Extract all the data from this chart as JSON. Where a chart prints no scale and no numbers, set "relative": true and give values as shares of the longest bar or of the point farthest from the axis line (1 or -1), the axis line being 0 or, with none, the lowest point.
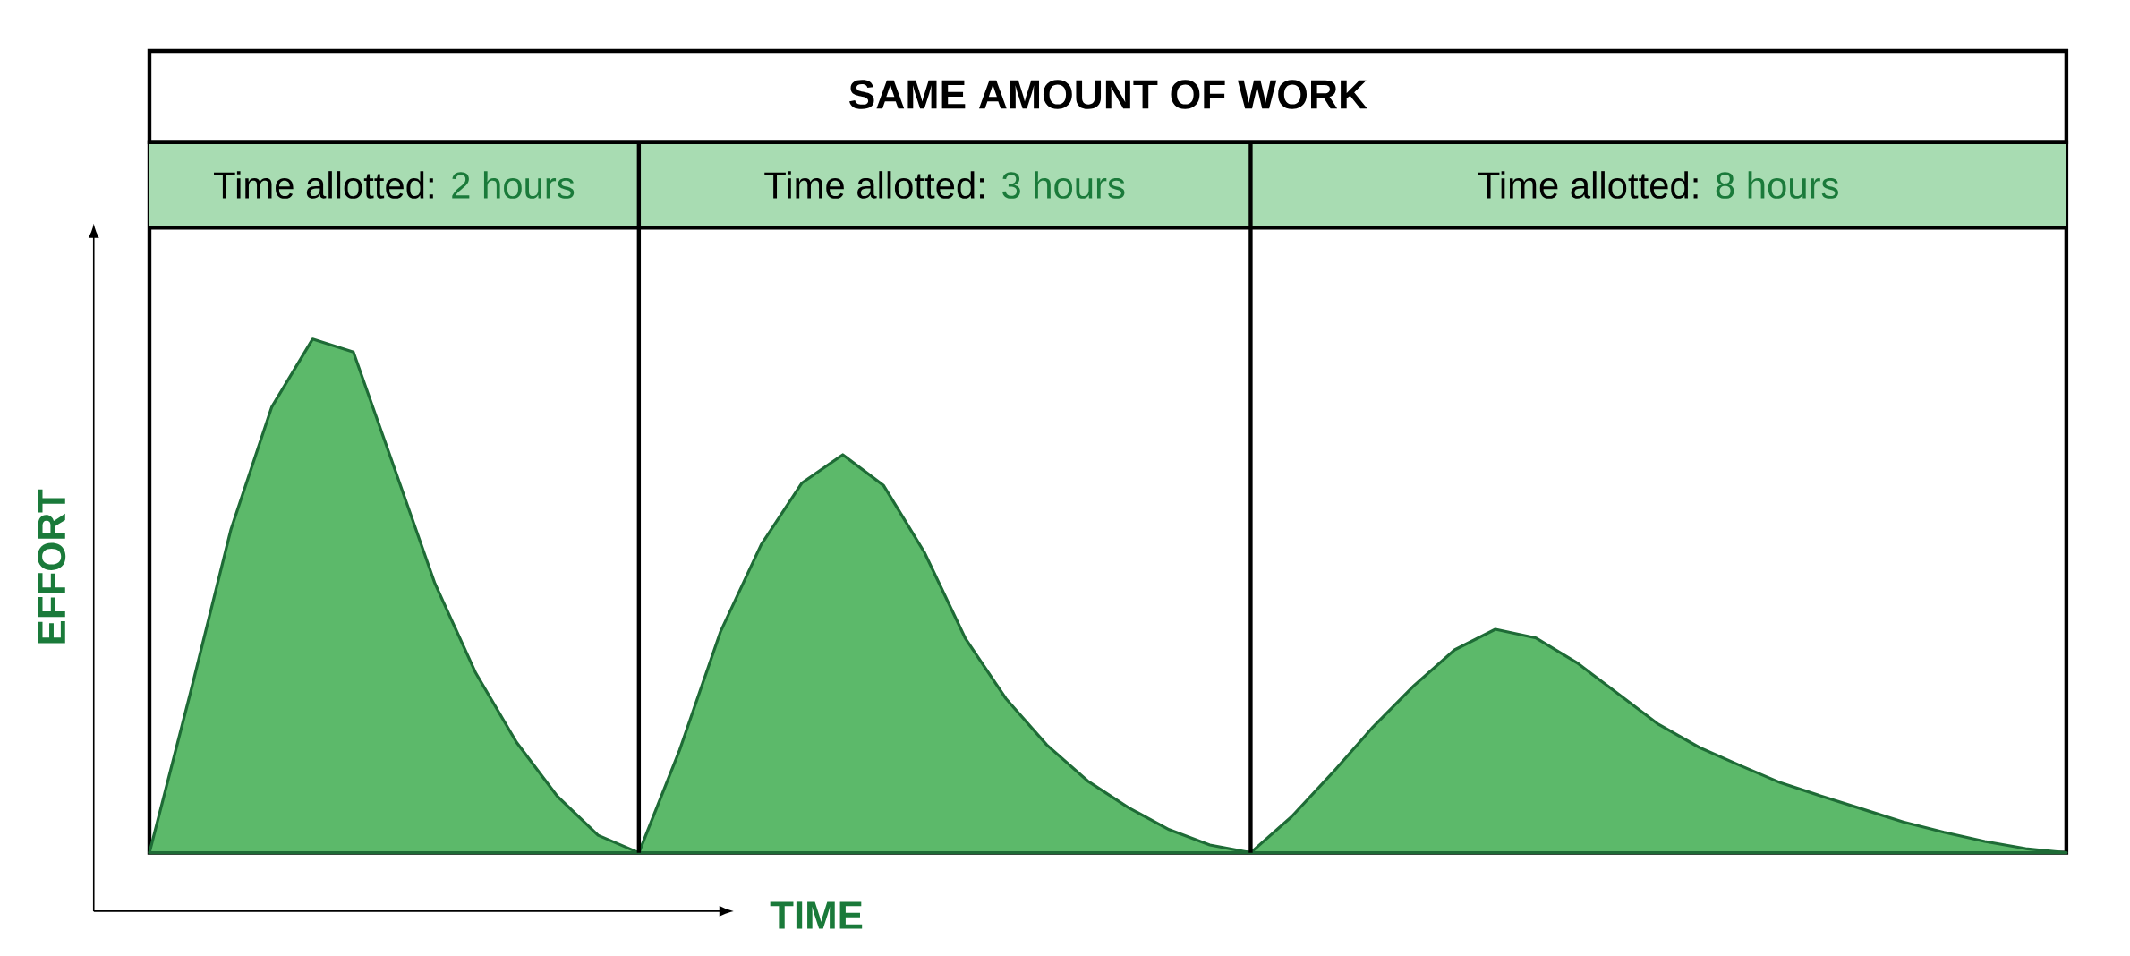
{
  "chart_data": {
    "type": "area",
    "relative": true,
    "tick_labels": false,
    "xlabel": "TIME",
    "ylabel": "EFFORT",
    "annotations": [
      "SAME AMOUNT OF WORK",
      "Time allotted:",
      "2 hours",
      "Time allotted:",
      "3 hours",
      "Time allotted:",
      "8 hours"
    ],
    "categories": [
      null,
      null,
      null,
      null,
      null,
      null,
      null,
      null,
      null,
      null,
      null,
      null,
      null,
      null,
      null,
      null,
      null,
      null,
      null,
      null,
      null,
      null,
      null,
      null,
      null,
      null,
      null,
      null,
      null,
      null,
      null,
      null,
      null,
      null,
      null,
      null,
      null,
      null,
      null,
      null,
      null,
      null,
      null,
      null,
      null,
      null,
      null,
      null
    ],
    "series": [
      {
        "color": "#5cb96a",
        "values": [
          0,
          0.31,
          0.63,
          0.868,
          1,
          0.975,
          0.75,
          0.524,
          0.35,
          0.215,
          0.11,
          0.034,
          0,
          null,
          null,
          null,
          null,
          null,
          null,
          null,
          null,
          null,
          null,
          null,
          null,
          null,
          null,
          null,
          null,
          null,
          null,
          null,
          null,
          null,
          null,
          null,
          null,
          null,
          null,
          null,
          null,
          null,
          null,
          null,
          null,
          null,
          null,
          null
        ]
      },
      {
        "color": "#5cb96a",
        "values": [
          null,
          null,
          null,
          null,
          null,
          null,
          null,
          null,
          null,
          null,
          null,
          null,
          0,
          0.2,
          0.43,
          0.6,
          0.72,
          0.775,
          0.715,
          0.585,
          0.418,
          0.3,
          0.21,
          0.14,
          0.088,
          0.045,
          0.015,
          0,
          null,
          null,
          null,
          null,
          null,
          null,
          null,
          null,
          null,
          null,
          null,
          null,
          null,
          null,
          null,
          null,
          null,
          null,
          null,
          null
        ]
      },
      {
        "color": "#5cb96a",
        "values": [
          null,
          null,
          null,
          null,
          null,
          null,
          null,
          null,
          null,
          null,
          null,
          null,
          null,
          null,
          null,
          null,
          null,
          null,
          null,
          null,
          null,
          null,
          null,
          null,
          null,
          null,
          null,
          0,
          0.07,
          0.155,
          0.245,
          0.325,
          0.395,
          0.435,
          0.418,
          0.37,
          0.31,
          0.25,
          0.205,
          0.17,
          0.136,
          0.11,
          0.085,
          0.06,
          0.04,
          0.022,
          0.008,
          0
        ]
      }
    ]
  }
}
